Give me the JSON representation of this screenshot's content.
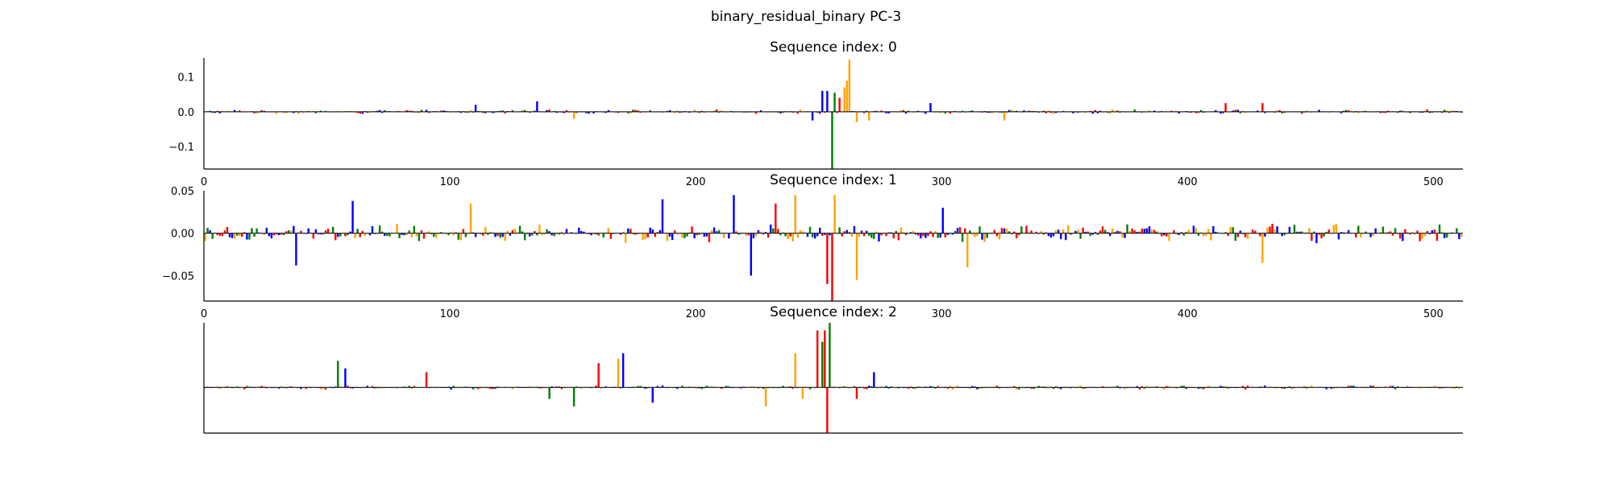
{
  "figure": {
    "suptitle": "binary_residual_binary PC-3",
    "colors": {
      "A": "#008000",
      "C": "#0000ff",
      "G": "#ffa500",
      "T": "#ff0000",
      "axis": "#000000"
    }
  },
  "chart_data": [
    {
      "type": "sequence_logo",
      "title": "Sequence index: 0",
      "xlim": [
        0,
        512
      ],
      "ylim": [
        -0.165,
        0.155
      ],
      "xticks": [
        "0",
        "100",
        "200",
        "300",
        "400",
        "500"
      ],
      "yticks": [
        "0.1",
        "0.0",
        "−0.1"
      ],
      "ytick_values": [
        0.1,
        0.0,
        -0.1
      ],
      "base_amplitude": 0.007,
      "peaks": [
        {
          "pos": 255,
          "value": -0.165,
          "base": "A"
        },
        {
          "pos": 251,
          "value": 0.06,
          "base": "C"
        },
        {
          "pos": 253,
          "value": 0.06,
          "base": "C"
        },
        {
          "pos": 256,
          "value": 0.055,
          "base": "A"
        },
        {
          "pos": 262,
          "value": 0.15,
          "base": "G"
        },
        {
          "pos": 261,
          "value": 0.09,
          "base": "G"
        },
        {
          "pos": 260,
          "value": 0.07,
          "base": "G"
        },
        {
          "pos": 258,
          "value": 0.04,
          "base": "T"
        },
        {
          "pos": 247,
          "value": -0.025,
          "base": "C"
        },
        {
          "pos": 265,
          "value": -0.03,
          "base": "G"
        },
        {
          "pos": 270,
          "value": -0.025,
          "base": "G"
        },
        {
          "pos": 295,
          "value": 0.025,
          "base": "C"
        },
        {
          "pos": 135,
          "value": 0.03,
          "base": "C"
        },
        {
          "pos": 430,
          "value": 0.025,
          "base": "T"
        },
        {
          "pos": 415,
          "value": 0.025,
          "base": "T"
        },
        {
          "pos": 325,
          "value": -0.025,
          "base": "G"
        },
        {
          "pos": 110,
          "value": 0.02,
          "base": "C"
        },
        {
          "pos": 150,
          "value": -0.02,
          "base": "G"
        }
      ]
    },
    {
      "type": "sequence_logo",
      "title": "Sequence index: 1",
      "xlim": [
        0,
        512
      ],
      "ylim": [
        -0.08,
        0.05
      ],
      "xticks": [
        "0",
        "100",
        "200",
        "300",
        "400",
        "500"
      ],
      "yticks": [
        "0.05",
        "0.00",
        "−0.05"
      ],
      "ytick_values": [
        0.05,
        0.0,
        -0.05
      ],
      "base_amplitude": 0.012,
      "peaks": [
        {
          "pos": 255,
          "value": -0.08,
          "base": "T"
        },
        {
          "pos": 253,
          "value": -0.06,
          "base": "T"
        },
        {
          "pos": 222,
          "value": -0.05,
          "base": "C"
        },
        {
          "pos": 265,
          "value": -0.055,
          "base": "G"
        },
        {
          "pos": 256,
          "value": 0.045,
          "base": "G"
        },
        {
          "pos": 240,
          "value": 0.045,
          "base": "G"
        },
        {
          "pos": 215,
          "value": 0.045,
          "base": "C"
        },
        {
          "pos": 232,
          "value": 0.035,
          "base": "T"
        },
        {
          "pos": 186,
          "value": 0.04,
          "base": "C"
        },
        {
          "pos": 60,
          "value": 0.038,
          "base": "C"
        },
        {
          "pos": 37,
          "value": -0.038,
          "base": "C"
        },
        {
          "pos": 300,
          "value": 0.03,
          "base": "C"
        },
        {
          "pos": 310,
          "value": -0.04,
          "base": "G"
        },
        {
          "pos": 430,
          "value": -0.035,
          "base": "G"
        },
        {
          "pos": 108,
          "value": 0.035,
          "base": "G"
        }
      ]
    },
    {
      "type": "sequence_logo",
      "title": "Sequence index: 2",
      "xlim": [
        0,
        512
      ],
      "ylim": [
        -0.06,
        0.085
      ],
      "xticks": [],
      "yticks": [],
      "ytick_values": [],
      "base_amplitude": 0.003,
      "peaks": [
        {
          "pos": 254,
          "value": 0.085,
          "base": "A"
        },
        {
          "pos": 252,
          "value": 0.075,
          "base": "T"
        },
        {
          "pos": 249,
          "value": 0.075,
          "base": "T"
        },
        {
          "pos": 251,
          "value": 0.06,
          "base": "A"
        },
        {
          "pos": 253,
          "value": -0.06,
          "base": "T"
        },
        {
          "pos": 240,
          "value": 0.045,
          "base": "G"
        },
        {
          "pos": 243,
          "value": 0.04,
          "base": "G"
        },
        {
          "pos": 170,
          "value": 0.045,
          "base": "C"
        },
        {
          "pos": 168,
          "value": 0.038,
          "base": "G"
        },
        {
          "pos": 160,
          "value": 0.032,
          "base": "T"
        },
        {
          "pos": 54,
          "value": 0.035,
          "base": "A"
        },
        {
          "pos": 57,
          "value": 0.025,
          "base": "C"
        },
        {
          "pos": 150,
          "value": -0.025,
          "base": "A"
        },
        {
          "pos": 140,
          "value": -0.015,
          "base": "A"
        },
        {
          "pos": 228,
          "value": -0.025,
          "base": "G"
        },
        {
          "pos": 243,
          "value": -0.015,
          "base": "G"
        },
        {
          "pos": 265,
          "value": -0.015,
          "base": "T"
        },
        {
          "pos": 272,
          "value": 0.02,
          "base": "C"
        },
        {
          "pos": 182,
          "value": -0.02,
          "base": "C"
        },
        {
          "pos": 90,
          "value": 0.02,
          "base": "T"
        }
      ]
    }
  ]
}
